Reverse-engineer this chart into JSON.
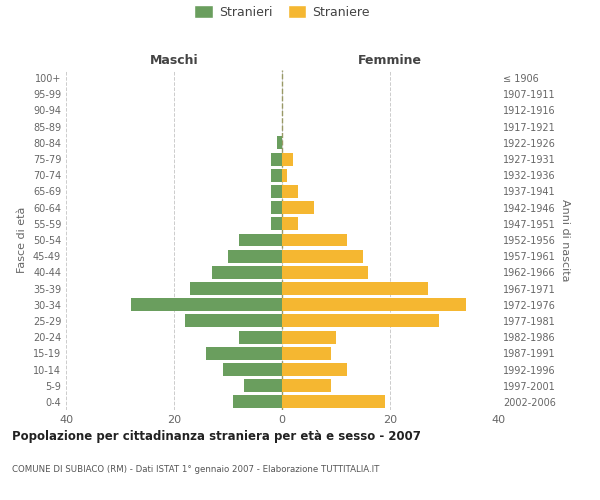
{
  "age_groups": [
    "100+",
    "95-99",
    "90-94",
    "85-89",
    "80-84",
    "75-79",
    "70-74",
    "65-69",
    "60-64",
    "55-59",
    "50-54",
    "45-49",
    "40-44",
    "35-39",
    "30-34",
    "25-29",
    "20-24",
    "15-19",
    "10-14",
    "5-9",
    "0-4"
  ],
  "birth_years": [
    "≤ 1906",
    "1907-1911",
    "1912-1916",
    "1917-1921",
    "1922-1926",
    "1927-1931",
    "1932-1936",
    "1937-1941",
    "1942-1946",
    "1947-1951",
    "1952-1956",
    "1957-1961",
    "1962-1966",
    "1967-1971",
    "1972-1976",
    "1977-1981",
    "1982-1986",
    "1987-1991",
    "1992-1996",
    "1997-2001",
    "2002-2006"
  ],
  "males": [
    0,
    0,
    0,
    0,
    1,
    2,
    2,
    2,
    2,
    2,
    8,
    10,
    13,
    17,
    28,
    18,
    8,
    14,
    11,
    7,
    9
  ],
  "females": [
    0,
    0,
    0,
    0,
    0,
    2,
    1,
    3,
    6,
    3,
    12,
    15,
    16,
    27,
    34,
    29,
    10,
    9,
    12,
    9,
    19
  ],
  "male_color": "#6a9e5e",
  "female_color": "#f5b731",
  "background_color": "#ffffff",
  "grid_color": "#cccccc",
  "title": "Popolazione per cittadinanza straniera per età e sesso - 2007",
  "subtitle": "COMUNE DI SUBIACO (RM) - Dati ISTAT 1° gennaio 2007 - Elaborazione TUTTITALIA.IT",
  "ylabel_left": "Fasce di età",
  "ylabel_right": "Anni di nascita",
  "header_left": "Maschi",
  "header_right": "Femmine",
  "legend_male": "Stranieri",
  "legend_female": "Straniere",
  "xlim": 40,
  "tick_color": "#666666",
  "bar_height": 0.8
}
